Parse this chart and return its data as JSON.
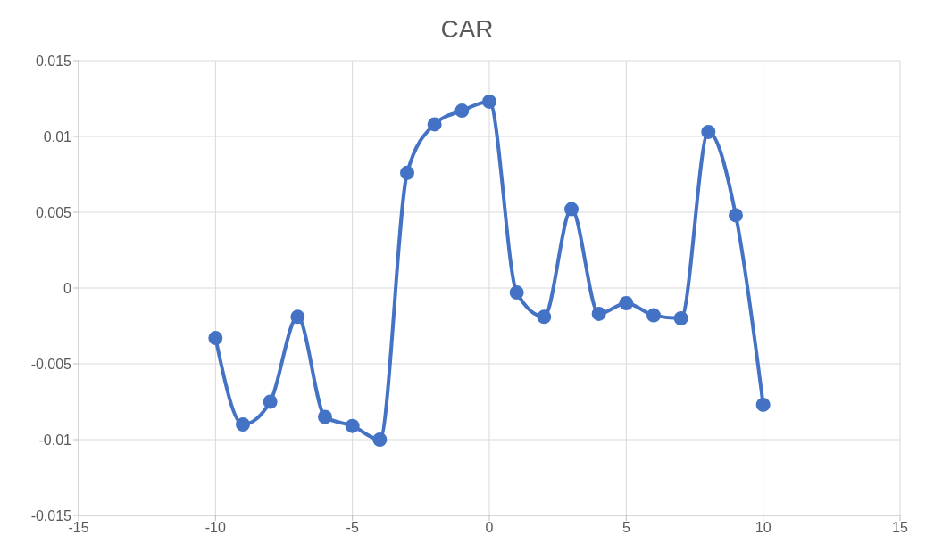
{
  "chart_data": {
    "type": "line",
    "title": "CAR",
    "x": [
      -10,
      -9,
      -8,
      -7,
      -6,
      -5,
      -4,
      -3,
      -2,
      -1,
      0,
      1,
      2,
      3,
      4,
      5,
      6,
      7,
      8,
      9,
      10
    ],
    "series": [
      {
        "color": "#4472c4",
        "values": [
          -0.0033,
          -0.009,
          -0.0075,
          -0.0019,
          -0.0085,
          -0.0091,
          -0.01,
          0.0076,
          0.0108,
          0.0117,
          0.0123,
          -0.0003,
          -0.0019,
          0.0052,
          -0.0017,
          -0.001,
          -0.0018,
          -0.002,
          0.0103,
          0.0048,
          -0.0077
        ]
      }
    ],
    "xlim": [
      -15,
      15
    ],
    "xticks": [
      -15,
      -10,
      -5,
      0,
      5,
      10,
      15
    ],
    "ylim": [
      -0.015,
      0.015
    ],
    "yticks": [
      -0.015,
      -0.01,
      -0.005,
      0,
      0.005,
      0.01,
      0.015
    ],
    "grid": true,
    "marker": "circle",
    "line_style": "solid"
  }
}
